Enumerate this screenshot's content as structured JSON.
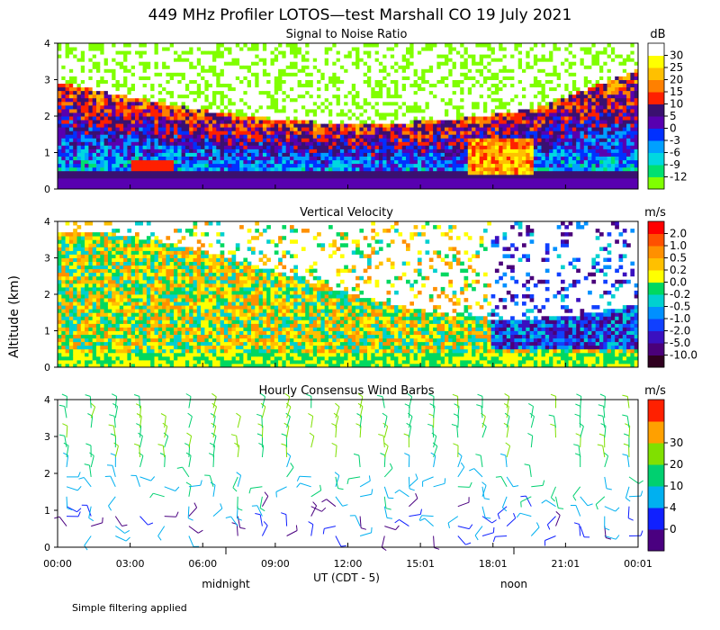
{
  "title": "449 MHz Profiler LOTOS—test Marshall CO 19 July 2021",
  "ylabel": "Altitude (km)",
  "footer_note": "Simple filtering applied",
  "x_axis": {
    "ticks": [
      "00:00",
      "03:00",
      "06:00",
      "09:00",
      "12:00",
      "15:01",
      "18:01",
      "21:01",
      "00:01"
    ],
    "xlabel": "UT  (CDT - 5)",
    "local_labels": [
      "midnight",
      "noon"
    ]
  },
  "chart_data": [
    {
      "type": "heatmap",
      "title": "Signal to Noise Ratio",
      "unit": "dB",
      "ylim": [
        0,
        4
      ],
      "yticks": [
        "0",
        "1",
        "2",
        "3",
        "4"
      ],
      "colorbar": [
        "-12",
        "-9",
        "-6",
        "-3",
        "0",
        "5",
        "10",
        "15",
        "20",
        "25",
        "30"
      ],
      "colors": [
        "#80ff00",
        "#00e070",
        "#00d8e0",
        "#00a0ff",
        "#0030ff",
        "#5800b0",
        "#3a1070",
        "#ff2000",
        "#ff8000",
        "#ffc000",
        "#ffff00",
        "#ffffff"
      ]
    },
    {
      "type": "heatmap",
      "title": "Vertical Velocity",
      "unit": "m/s",
      "ylim": [
        0,
        4
      ],
      "yticks": [
        "0",
        "1",
        "2",
        "3",
        "4"
      ],
      "colorbar": [
        "-10.0",
        "-5.0",
        "-2.0",
        "-1.0",
        "-0.5",
        "-0.2",
        "0.0",
        "0.2",
        "0.5",
        "1.0",
        "2.0"
      ],
      "colors": [
        "#300020",
        "#4a007a",
        "#3a10c0",
        "#1040ff",
        "#0090ff",
        "#00d0d0",
        "#00d860",
        "#ffff00",
        "#ffc000",
        "#ff9000",
        "#ff5000",
        "#ff0000"
      ]
    },
    {
      "type": "scatter",
      "title": "Hourly Consensus Wind Barbs",
      "unit": "m/s",
      "ylim": [
        0,
        4
      ],
      "yticks": [
        "0",
        "1",
        "2",
        "3",
        "4"
      ],
      "colorbar": [
        "0",
        "4",
        "10",
        "20",
        "30"
      ],
      "colors": [
        "#4a0080",
        "#1020ff",
        "#00b0f0",
        "#00d070",
        "#80e000",
        "#ffa000",
        "#ff2000"
      ]
    }
  ]
}
